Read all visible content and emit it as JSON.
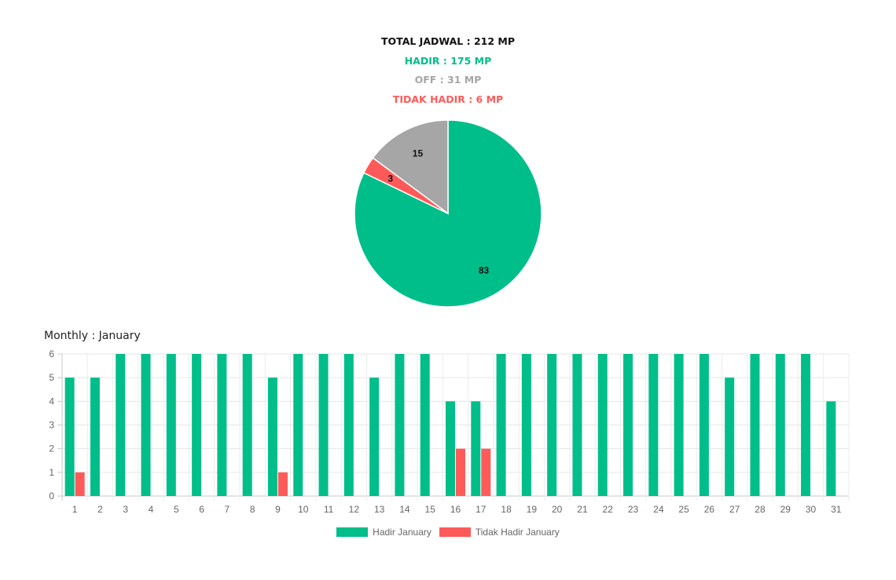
{
  "summary": {
    "total": "TOTAL JADWAL : 212 MP",
    "hadir": "HADIR : 175 MP",
    "off": "OFF : 31 MP",
    "tidak_hadir": "TIDAK HADIR : 6 MP"
  },
  "monthly_title": "Monthly : January",
  "colors": {
    "hadir": "#00be8a",
    "off": "#a6a6a6",
    "tidak_hadir": "#ff5a5a"
  },
  "chart_data": [
    {
      "type": "pie",
      "slices": [
        {
          "label": "Hadir",
          "value": 83,
          "color": "#00be8a"
        },
        {
          "label": "Tidak Hadir",
          "value": 3,
          "color": "#ff5a5a"
        },
        {
          "label": "Off",
          "value": 15,
          "color": "#a6a6a6"
        }
      ]
    },
    {
      "type": "bar",
      "title": "Monthly : January",
      "categories": [
        "1",
        "2",
        "3",
        "4",
        "5",
        "6",
        "7",
        "8",
        "9",
        "10",
        "11",
        "12",
        "13",
        "14",
        "15",
        "16",
        "17",
        "18",
        "19",
        "20",
        "21",
        "22",
        "23",
        "24",
        "25",
        "26",
        "27",
        "28",
        "29",
        "30",
        "31"
      ],
      "series": [
        {
          "name": "Hadir January",
          "color": "#00be8a",
          "values": [
            5,
            5,
            6,
            6,
            6,
            6,
            6,
            6,
            5,
            6,
            6,
            6,
            5,
            6,
            6,
            4,
            4,
            6,
            6,
            6,
            6,
            6,
            6,
            6,
            6,
            6,
            5,
            6,
            6,
            6,
            4
          ]
        },
        {
          "name": "Tidak Hadir January",
          "color": "#ff5a5a",
          "values": [
            1,
            0,
            0,
            0,
            0,
            0,
            0,
            0,
            1,
            0,
            0,
            0,
            0,
            0,
            0,
            2,
            2,
            0,
            0,
            0,
            0,
            0,
            0,
            0,
            0,
            0,
            0,
            0,
            0,
            0,
            0
          ]
        }
      ],
      "ylim": [
        0,
        6
      ],
      "yticks": [
        0,
        1,
        2,
        3,
        4,
        5,
        6
      ],
      "grid": true,
      "legend": "bottom"
    }
  ]
}
